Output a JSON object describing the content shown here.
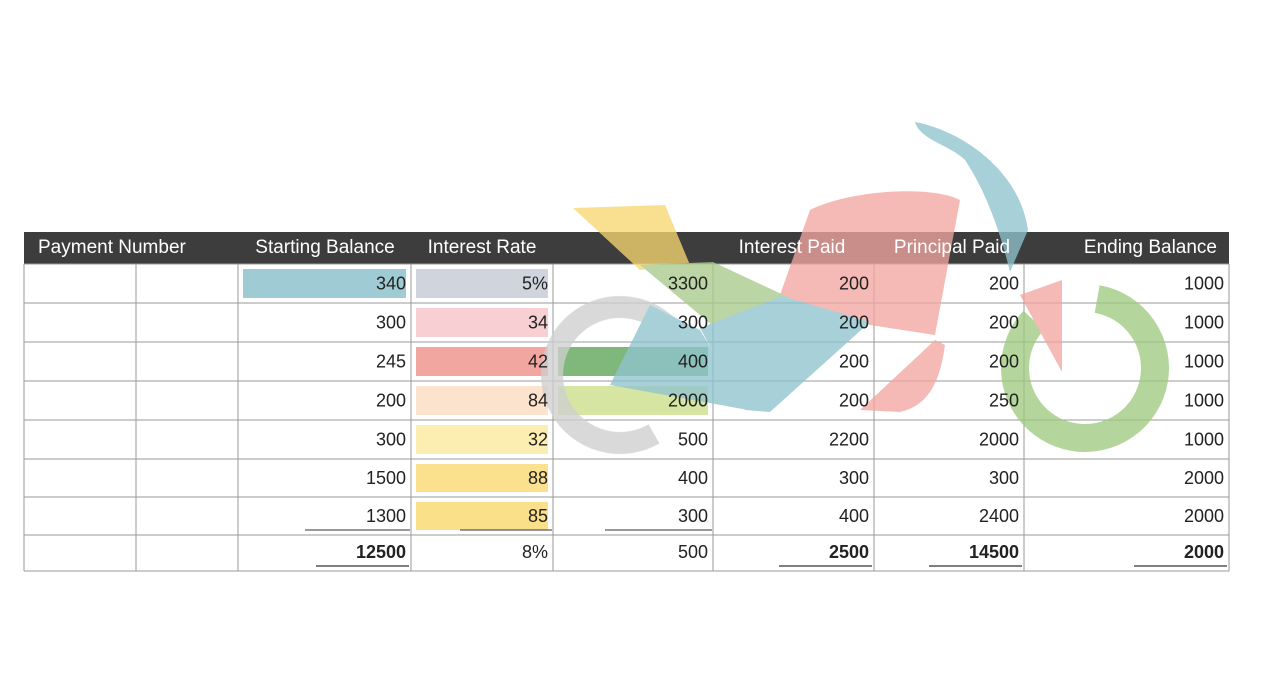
{
  "table": {
    "header": [
      "Payment Number",
      "Starting Balance",
      "Interest Rate",
      "Interest Paid",
      "Principal Paid",
      "Ending Balance"
    ],
    "rows": [
      [
        "340",
        "5%",
        "3300",
        "200",
        "200",
        "1000"
      ],
      [
        "300",
        "34",
        "300",
        "200",
        "200",
        "1000"
      ],
      [
        "245",
        "42",
        "400",
        "200",
        "200",
        "1000"
      ],
      [
        "200",
        "84",
        "2000",
        "200",
        "250",
        "1000"
      ],
      [
        "300",
        "32",
        "500",
        "2200",
        "2000",
        "1000"
      ],
      [
        "1500",
        "88",
        "400",
        "300",
        "300",
        "2000"
      ],
      [
        "1300",
        "85",
        "300",
        "400",
        "2400",
        "2000"
      ]
    ],
    "totals": [
      "12500",
      "8%",
      "500",
      "2500",
      "14500",
      "2000"
    ]
  }
}
